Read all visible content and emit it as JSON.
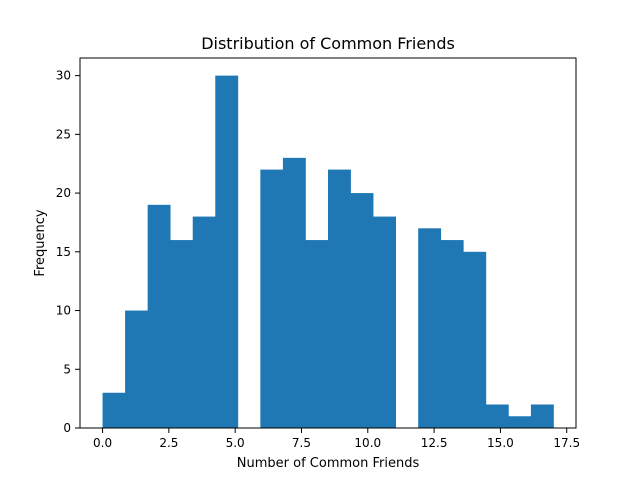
{
  "chart_data": {
    "type": "bar",
    "title": "Distribution of Common Friends",
    "xlabel": "Number of Common Friends",
    "ylabel": "Frequency",
    "xlim": [
      -0.85,
      17.85
    ],
    "ylim": [
      0,
      31.5
    ],
    "bins": [
      {
        "start": 0.0,
        "end": 0.85,
        "value": 3
      },
      {
        "start": 0.85,
        "end": 1.7,
        "value": 10
      },
      {
        "start": 1.7,
        "end": 2.55,
        "value": 19
      },
      {
        "start": 2.55,
        "end": 3.4,
        "value": 16
      },
      {
        "start": 3.4,
        "end": 4.25,
        "value": 18
      },
      {
        "start": 4.25,
        "end": 5.1,
        "value": 30
      },
      {
        "start": 5.1,
        "end": 5.95,
        "value": 0
      },
      {
        "start": 5.95,
        "end": 6.8,
        "value": 22
      },
      {
        "start": 6.8,
        "end": 7.65,
        "value": 23
      },
      {
        "start": 7.65,
        "end": 8.5,
        "value": 16
      },
      {
        "start": 8.5,
        "end": 9.35,
        "value": 22
      },
      {
        "start": 9.35,
        "end": 10.2,
        "value": 20
      },
      {
        "start": 10.2,
        "end": 11.05,
        "value": 18
      },
      {
        "start": 11.05,
        "end": 11.9,
        "value": 0
      },
      {
        "start": 11.9,
        "end": 12.75,
        "value": 17
      },
      {
        "start": 12.75,
        "end": 13.6,
        "value": 16
      },
      {
        "start": 13.6,
        "end": 14.45,
        "value": 15
      },
      {
        "start": 14.45,
        "end": 15.3,
        "value": 2
      },
      {
        "start": 15.3,
        "end": 16.15,
        "value": 1
      },
      {
        "start": 16.15,
        "end": 17.0,
        "value": 2
      }
    ],
    "xticks": [
      0.0,
      2.5,
      5.0,
      7.5,
      10.0,
      12.5,
      15.0,
      17.5
    ],
    "xtick_labels": [
      "0.0",
      "2.5",
      "5.0",
      "7.5",
      "10.0",
      "12.5",
      "15.0",
      "17.5"
    ],
    "yticks": [
      0,
      5,
      10,
      15,
      20,
      25,
      30
    ],
    "ytick_labels": [
      "0",
      "5",
      "10",
      "15",
      "20",
      "25",
      "30"
    ],
    "grid": false,
    "bar_color": "#1f77b4"
  }
}
